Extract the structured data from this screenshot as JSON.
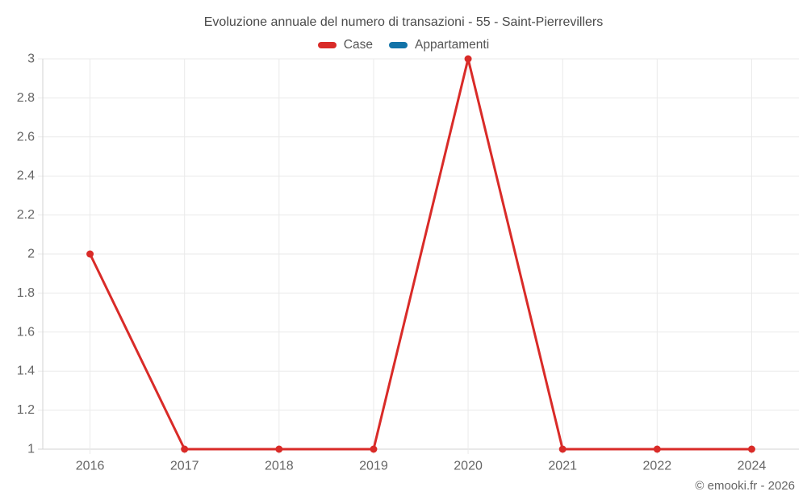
{
  "title": "Evoluzione annuale del numero di transazioni - 55 - Saint-Pierrevillers",
  "legend": {
    "items": [
      {
        "label": "Case",
        "color": "#d92b28"
      },
      {
        "label": "Appartamenti",
        "color": "#1273a8"
      }
    ]
  },
  "copyright": "© emooki.fr - 2026",
  "colors": {
    "grid": "#eaeaea",
    "axis": "#d3d3d3",
    "tick_text": "#666666",
    "background": "#ffffff"
  },
  "chart_data": {
    "type": "line",
    "title": "Evoluzione annuale del numero di transazioni - 55 - Saint-Pierrevillers",
    "xlabel": "",
    "ylabel": "",
    "categories": [
      "2016",
      "2017",
      "2018",
      "2019",
      "2020",
      "2021",
      "2022",
      "2024"
    ],
    "series": [
      {
        "name": "Case",
        "color": "#d92b28",
        "values": [
          2,
          1,
          1,
          1,
          3,
          1,
          1,
          1
        ]
      },
      {
        "name": "Appartamenti",
        "color": "#1273a8",
        "values": []
      }
    ],
    "ylim": [
      1,
      3
    ],
    "yticks": [
      1,
      1.2,
      1.4,
      1.6,
      1.8,
      2,
      2.2,
      2.4,
      2.6,
      2.8,
      3
    ],
    "grid": true,
    "legend_position": "top",
    "marker_radius": 4.5,
    "line_width": 3
  }
}
